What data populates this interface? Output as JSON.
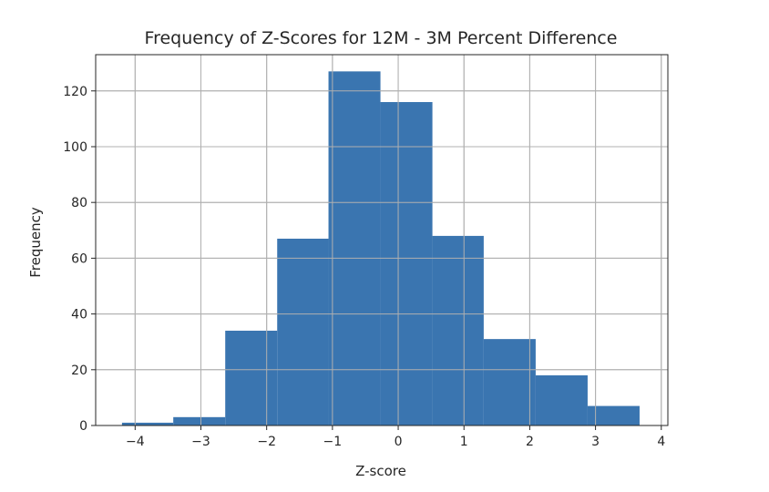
{
  "chart_data": {
    "type": "bar",
    "title": "Frequency of Z-Scores for 12M - 3M Percent Difference",
    "xlabel": "Z-score",
    "ylabel": "Frequency",
    "bins": [
      {
        "x0": -4.2,
        "x1": -3.42,
        "count": 1
      },
      {
        "x0": -3.42,
        "x1": -2.63,
        "count": 3
      },
      {
        "x0": -2.63,
        "x1": -1.84,
        "count": 34
      },
      {
        "x0": -1.84,
        "x1": -1.06,
        "count": 67
      },
      {
        "x0": -1.06,
        "x1": -0.27,
        "count": 127
      },
      {
        "x0": -0.27,
        "x1": 0.52,
        "count": 116
      },
      {
        "x0": 0.52,
        "x1": 1.3,
        "count": 68
      },
      {
        "x0": 1.3,
        "x1": 2.09,
        "count": 31
      },
      {
        "x0": 2.09,
        "x1": 2.88,
        "count": 18
      },
      {
        "x0": 2.88,
        "x1": 3.67,
        "count": 7
      }
    ],
    "xlim": [
      -4.6,
      4.1
    ],
    "ylim": [
      0,
      133
    ],
    "x_ticks": [
      -4,
      -3,
      -2,
      -1,
      0,
      1,
      2,
      3,
      4
    ],
    "x_tick_labels": [
      "−4",
      "−3",
      "−2",
      "−1",
      "0",
      "1",
      "2",
      "3",
      "4"
    ],
    "y_ticks": [
      0,
      20,
      40,
      60,
      80,
      100,
      120
    ],
    "y_tick_labels": [
      "0",
      "20",
      "40",
      "60",
      "80",
      "100",
      "120"
    ],
    "grid": true,
    "bar_color": "#3a75b0",
    "grid_color": "#b0b0b0"
  }
}
